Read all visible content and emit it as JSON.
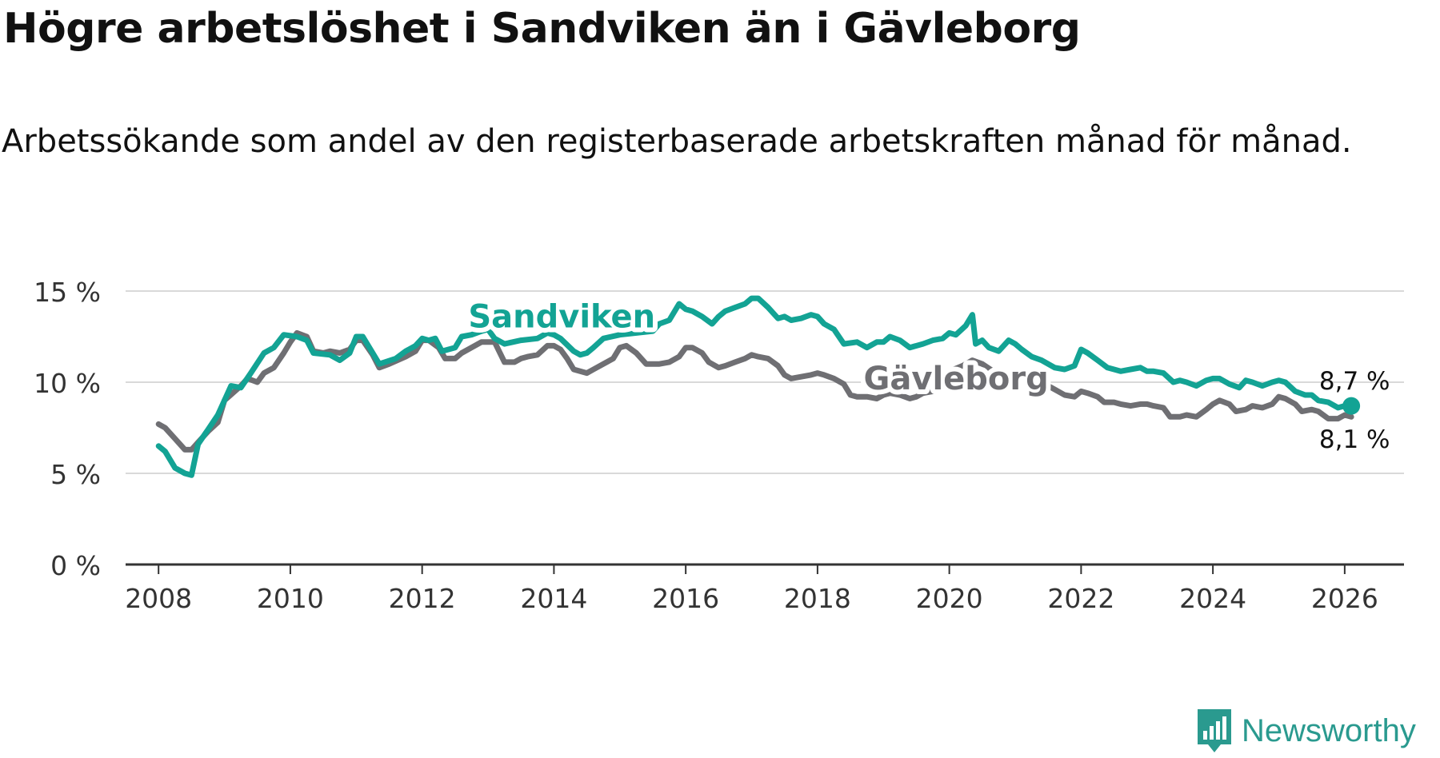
{
  "header": {
    "title": "Högre arbetslöshet i Sandviken än i Gävleborg",
    "subtitle": "Arbetssökande som andel av den registerbaserade arbetskraften månad för månad."
  },
  "brand": {
    "name": "Newsworthy",
    "icon": "newsworthy-logo-icon"
  },
  "colors": {
    "sandviken": "#13a394",
    "gavleborg": "#6f6f73",
    "grid": "#d9d9d9",
    "axis": "#333333"
  },
  "chart_data": {
    "type": "line",
    "title": "Högre arbetslöshet i Sandviken än i Gävleborg",
    "xlabel": "",
    "ylabel": "",
    "xlim": [
      2007.5,
      2026.9
    ],
    "ylim": [
      0,
      15
    ],
    "x_ticks": [
      2008,
      2010,
      2012,
      2014,
      2016,
      2018,
      2020,
      2022,
      2024,
      2026
    ],
    "x_tick_labels": [
      "2008",
      "2010",
      "2012",
      "2014",
      "2016",
      "2018",
      "2020",
      "2022",
      "2024",
      "2026"
    ],
    "y_ticks": [
      0,
      5,
      10,
      15
    ],
    "y_tick_labels": [
      "0 %",
      "5 %",
      "10 %",
      "15 %"
    ],
    "grid": true,
    "legend": "inline",
    "series": [
      {
        "name": "Sandviken",
        "end_label": "8,7 %",
        "points": [
          [
            2008.0,
            6.5
          ],
          [
            2008.1,
            6.2
          ],
          [
            2008.25,
            5.3
          ],
          [
            2008.4,
            5.0
          ],
          [
            2008.5,
            4.9
          ],
          [
            2008.6,
            6.6
          ],
          [
            2008.75,
            7.4
          ],
          [
            2008.9,
            8.2
          ],
          [
            2009.1,
            9.8
          ],
          [
            2009.25,
            9.7
          ],
          [
            2009.4,
            10.5
          ],
          [
            2009.6,
            11.6
          ],
          [
            2009.75,
            11.9
          ],
          [
            2009.9,
            12.6
          ],
          [
            2010.1,
            12.5
          ],
          [
            2010.25,
            12.3
          ],
          [
            2010.35,
            11.6
          ],
          [
            2010.6,
            11.5
          ],
          [
            2010.75,
            11.2
          ],
          [
            2010.9,
            11.6
          ],
          [
            2011.0,
            12.5
          ],
          [
            2011.1,
            12.5
          ],
          [
            2011.25,
            11.6
          ],
          [
            2011.35,
            11.0
          ],
          [
            2011.6,
            11.3
          ],
          [
            2011.75,
            11.7
          ],
          [
            2011.9,
            12.0
          ],
          [
            2012.0,
            12.4
          ],
          [
            2012.1,
            12.3
          ],
          [
            2012.2,
            12.4
          ],
          [
            2012.3,
            11.7
          ],
          [
            2012.5,
            11.9
          ],
          [
            2012.6,
            12.5
          ],
          [
            2012.75,
            12.6
          ],
          [
            2012.9,
            12.8
          ],
          [
            2013.0,
            12.9
          ],
          [
            2013.1,
            12.4
          ],
          [
            2013.25,
            12.1
          ],
          [
            2013.5,
            12.3
          ],
          [
            2013.75,
            12.4
          ],
          [
            2013.9,
            12.7
          ],
          [
            2014.0,
            12.6
          ],
          [
            2014.1,
            12.4
          ],
          [
            2014.3,
            11.7
          ],
          [
            2014.4,
            11.5
          ],
          [
            2014.5,
            11.6
          ],
          [
            2014.6,
            11.9
          ],
          [
            2014.75,
            12.4
          ],
          [
            2015.0,
            12.6
          ],
          [
            2015.25,
            12.7
          ],
          [
            2015.5,
            12.8
          ],
          [
            2015.6,
            13.2
          ],
          [
            2015.75,
            13.4
          ],
          [
            2015.9,
            14.3
          ],
          [
            2016.0,
            14.0
          ],
          [
            2016.1,
            13.9
          ],
          [
            2016.25,
            13.6
          ],
          [
            2016.4,
            13.2
          ],
          [
            2016.5,
            13.6
          ],
          [
            2016.6,
            13.9
          ],
          [
            2016.75,
            14.1
          ],
          [
            2016.9,
            14.3
          ],
          [
            2017.0,
            14.6
          ],
          [
            2017.1,
            14.6
          ],
          [
            2017.25,
            14.1
          ],
          [
            2017.4,
            13.5
          ],
          [
            2017.5,
            13.6
          ],
          [
            2017.6,
            13.4
          ],
          [
            2017.75,
            13.5
          ],
          [
            2017.9,
            13.7
          ],
          [
            2018.0,
            13.6
          ],
          [
            2018.1,
            13.2
          ],
          [
            2018.25,
            12.9
          ],
          [
            2018.4,
            12.1
          ],
          [
            2018.6,
            12.2
          ],
          [
            2018.75,
            11.9
          ],
          [
            2018.9,
            12.2
          ],
          [
            2019.0,
            12.2
          ],
          [
            2019.1,
            12.5
          ],
          [
            2019.25,
            12.3
          ],
          [
            2019.4,
            11.9
          ],
          [
            2019.6,
            12.1
          ],
          [
            2019.75,
            12.3
          ],
          [
            2019.9,
            12.4
          ],
          [
            2020.0,
            12.7
          ],
          [
            2020.1,
            12.6
          ],
          [
            2020.25,
            13.1
          ],
          [
            2020.35,
            13.7
          ],
          [
            2020.4,
            12.1
          ],
          [
            2020.5,
            12.3
          ],
          [
            2020.6,
            11.9
          ],
          [
            2020.75,
            11.7
          ],
          [
            2020.9,
            12.3
          ],
          [
            2021.0,
            12.1
          ],
          [
            2021.1,
            11.8
          ],
          [
            2021.25,
            11.4
          ],
          [
            2021.4,
            11.2
          ],
          [
            2021.5,
            11.0
          ],
          [
            2021.6,
            10.8
          ],
          [
            2021.75,
            10.7
          ],
          [
            2021.9,
            10.9
          ],
          [
            2022.0,
            11.8
          ],
          [
            2022.1,
            11.6
          ],
          [
            2022.25,
            11.2
          ],
          [
            2022.4,
            10.8
          ],
          [
            2022.5,
            10.7
          ],
          [
            2022.6,
            10.6
          ],
          [
            2022.75,
            10.7
          ],
          [
            2022.9,
            10.8
          ],
          [
            2023.0,
            10.6
          ],
          [
            2023.1,
            10.6
          ],
          [
            2023.25,
            10.5
          ],
          [
            2023.4,
            10.0
          ],
          [
            2023.5,
            10.1
          ],
          [
            2023.6,
            10.0
          ],
          [
            2023.75,
            9.8
          ],
          [
            2023.9,
            10.1
          ],
          [
            2024.0,
            10.2
          ],
          [
            2024.1,
            10.2
          ],
          [
            2024.25,
            9.9
          ],
          [
            2024.4,
            9.7
          ],
          [
            2024.5,
            10.1
          ],
          [
            2024.6,
            10.0
          ],
          [
            2024.75,
            9.8
          ],
          [
            2024.9,
            10.0
          ],
          [
            2025.0,
            10.1
          ],
          [
            2025.1,
            10.0
          ],
          [
            2025.25,
            9.5
          ],
          [
            2025.4,
            9.3
          ],
          [
            2025.5,
            9.3
          ],
          [
            2025.6,
            9.0
          ],
          [
            2025.75,
            8.9
          ],
          [
            2025.9,
            8.6
          ],
          [
            2026.0,
            8.7
          ],
          [
            2026.1,
            8.7
          ]
        ]
      },
      {
        "name": "Gävleborg",
        "end_label": "8,1 %",
        "points": [
          [
            2008.0,
            7.7
          ],
          [
            2008.1,
            7.5
          ],
          [
            2008.25,
            6.9
          ],
          [
            2008.4,
            6.3
          ],
          [
            2008.5,
            6.3
          ],
          [
            2008.6,
            6.7
          ],
          [
            2008.75,
            7.3
          ],
          [
            2008.9,
            7.8
          ],
          [
            2009.0,
            9.0
          ],
          [
            2009.25,
            9.8
          ],
          [
            2009.35,
            10.2
          ],
          [
            2009.5,
            10.0
          ],
          [
            2009.6,
            10.5
          ],
          [
            2009.75,
            10.8
          ],
          [
            2009.9,
            11.6
          ],
          [
            2010.0,
            12.2
          ],
          [
            2010.1,
            12.7
          ],
          [
            2010.25,
            12.5
          ],
          [
            2010.35,
            11.7
          ],
          [
            2010.5,
            11.6
          ],
          [
            2010.6,
            11.7
          ],
          [
            2010.75,
            11.6
          ],
          [
            2010.9,
            11.8
          ],
          [
            2011.0,
            12.3
          ],
          [
            2011.1,
            12.3
          ],
          [
            2011.25,
            11.5
          ],
          [
            2011.35,
            10.8
          ],
          [
            2011.5,
            11.0
          ],
          [
            2011.75,
            11.4
          ],
          [
            2011.9,
            11.7
          ],
          [
            2012.0,
            12.3
          ],
          [
            2012.1,
            12.3
          ],
          [
            2012.25,
            11.9
          ],
          [
            2012.35,
            11.3
          ],
          [
            2012.5,
            11.3
          ],
          [
            2012.6,
            11.6
          ],
          [
            2012.75,
            11.9
          ],
          [
            2012.9,
            12.2
          ],
          [
            2013.1,
            12.2
          ],
          [
            2013.25,
            11.1
          ],
          [
            2013.4,
            11.1
          ],
          [
            2013.5,
            11.3
          ],
          [
            2013.6,
            11.4
          ],
          [
            2013.75,
            11.5
          ],
          [
            2013.9,
            12.0
          ],
          [
            2014.0,
            12.0
          ],
          [
            2014.1,
            11.8
          ],
          [
            2014.2,
            11.3
          ],
          [
            2014.3,
            10.7
          ],
          [
            2014.5,
            10.5
          ],
          [
            2014.6,
            10.7
          ],
          [
            2014.75,
            11.0
          ],
          [
            2014.9,
            11.3
          ],
          [
            2015.0,
            11.9
          ],
          [
            2015.1,
            12.0
          ],
          [
            2015.25,
            11.6
          ],
          [
            2015.4,
            11.0
          ],
          [
            2015.6,
            11.0
          ],
          [
            2015.75,
            11.1
          ],
          [
            2015.9,
            11.4
          ],
          [
            2016.0,
            11.9
          ],
          [
            2016.1,
            11.9
          ],
          [
            2016.25,
            11.6
          ],
          [
            2016.35,
            11.1
          ],
          [
            2016.5,
            10.8
          ],
          [
            2016.6,
            10.9
          ],
          [
            2016.75,
            11.1
          ],
          [
            2016.9,
            11.3
          ],
          [
            2017.0,
            11.5
          ],
          [
            2017.1,
            11.4
          ],
          [
            2017.25,
            11.3
          ],
          [
            2017.4,
            10.9
          ],
          [
            2017.5,
            10.4
          ],
          [
            2017.6,
            10.2
          ],
          [
            2017.75,
            10.3
          ],
          [
            2017.9,
            10.4
          ],
          [
            2018.0,
            10.5
          ],
          [
            2018.1,
            10.4
          ],
          [
            2018.25,
            10.2
          ],
          [
            2018.4,
            9.9
          ],
          [
            2018.5,
            9.3
          ],
          [
            2018.6,
            9.2
          ],
          [
            2018.75,
            9.2
          ],
          [
            2018.9,
            9.1
          ],
          [
            2019.0,
            9.3
          ],
          [
            2019.1,
            9.4
          ],
          [
            2019.25,
            9.3
          ],
          [
            2019.4,
            9.1
          ],
          [
            2019.5,
            9.2
          ],
          [
            2019.6,
            9.4
          ],
          [
            2019.75,
            9.5
          ],
          [
            2019.9,
            9.6
          ],
          [
            2020.0,
            10.6
          ],
          [
            2020.2,
            10.9
          ],
          [
            2020.35,
            11.2
          ],
          [
            2020.5,
            11.0
          ],
          [
            2020.75,
            10.4
          ],
          [
            2020.9,
            10.3
          ],
          [
            2021.0,
            10.2
          ],
          [
            2021.1,
            10.1
          ],
          [
            2021.25,
            10.0
          ],
          [
            2021.4,
            9.9
          ],
          [
            2021.5,
            9.8
          ],
          [
            2021.6,
            9.6
          ],
          [
            2021.75,
            9.3
          ],
          [
            2021.9,
            9.2
          ],
          [
            2022.0,
            9.5
          ],
          [
            2022.1,
            9.4
          ],
          [
            2022.25,
            9.2
          ],
          [
            2022.35,
            8.9
          ],
          [
            2022.5,
            8.9
          ],
          [
            2022.6,
            8.8
          ],
          [
            2022.75,
            8.7
          ],
          [
            2022.9,
            8.8
          ],
          [
            2023.0,
            8.8
          ],
          [
            2023.1,
            8.7
          ],
          [
            2023.25,
            8.6
          ],
          [
            2023.35,
            8.1
          ],
          [
            2023.5,
            8.1
          ],
          [
            2023.6,
            8.2
          ],
          [
            2023.75,
            8.1
          ],
          [
            2023.9,
            8.5
          ],
          [
            2024.0,
            8.8
          ],
          [
            2024.1,
            9.0
          ],
          [
            2024.25,
            8.8
          ],
          [
            2024.35,
            8.4
          ],
          [
            2024.5,
            8.5
          ],
          [
            2024.6,
            8.7
          ],
          [
            2024.75,
            8.6
          ],
          [
            2024.9,
            8.8
          ],
          [
            2025.0,
            9.2
          ],
          [
            2025.1,
            9.1
          ],
          [
            2025.25,
            8.8
          ],
          [
            2025.35,
            8.4
          ],
          [
            2025.5,
            8.5
          ],
          [
            2025.6,
            8.4
          ],
          [
            2025.75,
            8.0
          ],
          [
            2025.9,
            8.0
          ],
          [
            2026.0,
            8.2
          ],
          [
            2026.1,
            8.1
          ]
        ]
      }
    ]
  }
}
